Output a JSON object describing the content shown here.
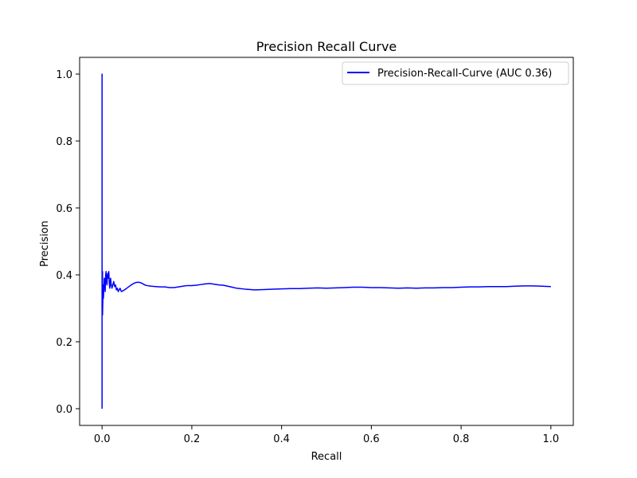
{
  "chart_data": {
    "type": "line",
    "title": "Precision Recall Curve",
    "xlabel": "Recall",
    "ylabel": "Precision",
    "xlim": [
      -0.05,
      1.05
    ],
    "ylim": [
      -0.05,
      1.05
    ],
    "xticks": [
      0.0,
      0.2,
      0.4,
      0.6,
      0.8,
      1.0
    ],
    "yticks": [
      0.0,
      0.2,
      0.4,
      0.6,
      0.8,
      1.0
    ],
    "xtick_labels": [
      "0.0",
      "0.2",
      "0.4",
      "0.6",
      "0.8",
      "1.0"
    ],
    "ytick_labels": [
      "0.0",
      "0.2",
      "0.4",
      "0.6",
      "0.8",
      "1.0"
    ],
    "grid": false,
    "legend_position": "top-right",
    "series": [
      {
        "name": "Precision-Recall-Curve (AUC 0.36)",
        "color": "#0000ff",
        "x": [
          0.0,
          0.0,
          0.0,
          0.001,
          0.001,
          0.002,
          0.002,
          0.003,
          0.004,
          0.005,
          0.006,
          0.007,
          0.008,
          0.009,
          0.01,
          0.011,
          0.012,
          0.013,
          0.014,
          0.015,
          0.016,
          0.017,
          0.018,
          0.019,
          0.02,
          0.022,
          0.024,
          0.026,
          0.028,
          0.03,
          0.032,
          0.034,
          0.036,
          0.038,
          0.04,
          0.043,
          0.046,
          0.05,
          0.055,
          0.06,
          0.065,
          0.07,
          0.075,
          0.08,
          0.085,
          0.09,
          0.095,
          0.1,
          0.11,
          0.12,
          0.13,
          0.14,
          0.15,
          0.16,
          0.17,
          0.18,
          0.19,
          0.2,
          0.21,
          0.22,
          0.23,
          0.24,
          0.25,
          0.26,
          0.27,
          0.28,
          0.29,
          0.3,
          0.32,
          0.34,
          0.36,
          0.38,
          0.4,
          0.42,
          0.44,
          0.46,
          0.48,
          0.5,
          0.52,
          0.54,
          0.56,
          0.58,
          0.6,
          0.62,
          0.64,
          0.66,
          0.68,
          0.7,
          0.72,
          0.74,
          0.76,
          0.78,
          0.8,
          0.82,
          0.84,
          0.86,
          0.88,
          0.9,
          0.92,
          0.94,
          0.96,
          0.98,
          1.0
        ],
        "y": [
          0.0,
          1.0,
          0.3,
          0.41,
          0.28,
          0.34,
          0.37,
          0.33,
          0.36,
          0.39,
          0.38,
          0.35,
          0.4,
          0.41,
          0.38,
          0.37,
          0.4,
          0.405,
          0.39,
          0.41,
          0.38,
          0.36,
          0.37,
          0.39,
          0.375,
          0.36,
          0.37,
          0.38,
          0.365,
          0.37,
          0.355,
          0.36,
          0.35,
          0.355,
          0.36,
          0.35,
          0.352,
          0.355,
          0.36,
          0.365,
          0.37,
          0.374,
          0.377,
          0.378,
          0.377,
          0.374,
          0.37,
          0.368,
          0.366,
          0.365,
          0.364,
          0.364,
          0.362,
          0.362,
          0.364,
          0.366,
          0.368,
          0.368,
          0.369,
          0.371,
          0.373,
          0.374,
          0.372,
          0.37,
          0.369,
          0.366,
          0.363,
          0.36,
          0.357,
          0.355,
          0.356,
          0.357,
          0.358,
          0.359,
          0.359,
          0.36,
          0.361,
          0.36,
          0.361,
          0.362,
          0.363,
          0.363,
          0.362,
          0.362,
          0.361,
          0.36,
          0.361,
          0.36,
          0.361,
          0.361,
          0.362,
          0.362,
          0.363,
          0.364,
          0.364,
          0.365,
          0.365,
          0.365,
          0.366,
          0.367,
          0.367,
          0.366,
          0.365
        ]
      }
    ]
  }
}
